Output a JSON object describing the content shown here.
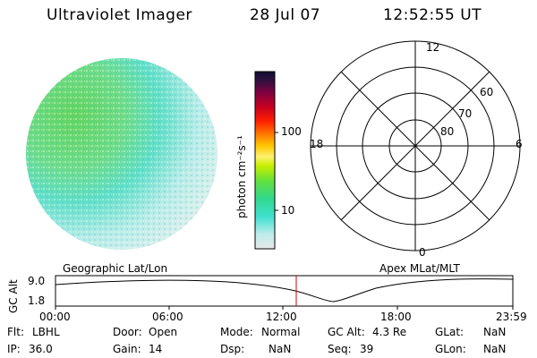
{
  "header": {
    "instrument": "Ultraviolet Imager",
    "date": "28 Jul 07",
    "time": "12:52:55 UT"
  },
  "colorbar": {
    "unit_label": "photon cm⁻²s⁻¹",
    "tick_labels": [
      "100",
      "10"
    ]
  },
  "polar_plot": {
    "mlt_labels": [
      "12",
      "18",
      "6",
      "0"
    ],
    "mlat_labels": [
      "60",
      "70",
      "80"
    ]
  },
  "timeline": {
    "left_title": "Geographic Lat/Lon",
    "right_title": "Apex MLat/MLT",
    "y_axis_label": "GC Alt",
    "y_ticks": [
      "9.0",
      "1.8"
    ],
    "x_ticks": [
      "00:00",
      "06:00",
      "12:00",
      "18:00",
      "23:59"
    ],
    "current_marker_color": "#cc0000"
  },
  "info": {
    "flt_label": "Flt:",
    "flt_value": "LBHL",
    "ip_label": "IP:",
    "ip_value": "36.0",
    "door_label": "Door:",
    "door_value": "Open",
    "gain_label": "Gain:",
    "gain_value": "14",
    "mode_label": "Mode:",
    "mode_value": "Normal",
    "dsp_label": "Dsp:",
    "dsp_value": "NaN",
    "gcalt_label": "GC Alt:",
    "gcalt_value": "4.3 Re",
    "seq_label": "Seq:",
    "seq_value": "39",
    "glat_label": "GLat:",
    "glat_value": "NaN",
    "glon_label": "GLon:",
    "glon_value": "NaN"
  },
  "colors": {
    "earth_bright": "#6fd86a",
    "earth_mid": "#5fe0c8",
    "earth_dim": "#d8ecea"
  }
}
